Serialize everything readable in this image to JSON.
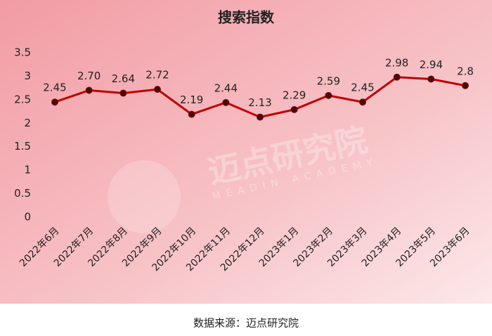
{
  "chart_data": {
    "type": "line",
    "title": "搜索指数",
    "categories": [
      "2022年6月",
      "2022年7月",
      "2022年8月",
      "2022年9月",
      "2022年10月",
      "2022年11月",
      "2022年12月",
      "2023年1月",
      "2023年2月",
      "2023年3月",
      "2023年4月",
      "2023年5月",
      "2023年6月"
    ],
    "series": [
      {
        "name": "搜索指数",
        "color": "#c00000",
        "values": [
          2.45,
          2.7,
          2.64,
          2.72,
          2.19,
          2.44,
          2.13,
          2.29,
          2.59,
          2.45,
          2.98,
          2.94,
          2.8
        ],
        "value_labels": [
          "2.45",
          "2.70",
          "2.64",
          "2.72",
          "2.19",
          "2.44",
          "2.13",
          "2.29",
          "2.59",
          "2.45",
          "2.98",
          "2.94",
          "2.8"
        ]
      }
    ],
    "ylim": [
      0,
      3.5
    ],
    "yticks": [
      0,
      {
        "value": 0.5,
        "label": "0.5"
      },
      1,
      1.5,
      2,
      2.5,
      3,
      3.5
    ],
    "grid": false,
    "watermark": "迈点研究院",
    "watermark_subtitle": "MEADIN ACADEMY",
    "source": "数据来源：迈点研究院"
  }
}
